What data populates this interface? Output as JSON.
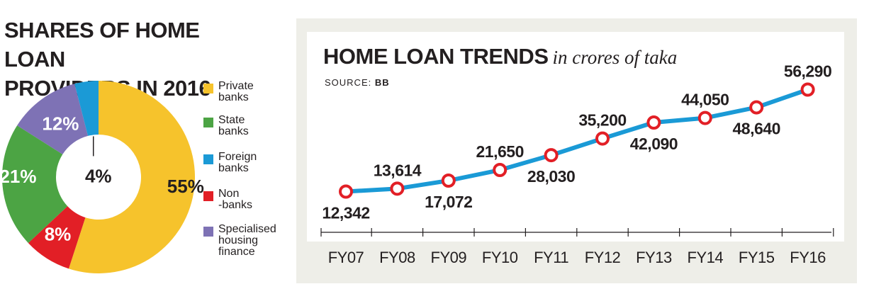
{
  "chart_data": [
    {
      "type": "pie",
      "title": "SHARES OF HOME LOAN\nPROVIDERS IN 2016",
      "labels": [
        "Private\nbanks",
        "State\nbanks",
        "Foreign\nbanks",
        "Non\n-banks",
        "Specialised\nhousing\nfinance"
      ],
      "segments": [
        {
          "name": "Private banks",
          "value": 55,
          "value_label": "55%",
          "color": "#f6c32c"
        },
        {
          "name": "Non-banks",
          "value": 8,
          "value_label": "8%",
          "color": "#e21f26"
        },
        {
          "name": "State banks",
          "value": 21,
          "value_label": "21%",
          "color": "#4ca444"
        },
        {
          "name": "Specialised housing finance",
          "value": 12,
          "value_label": "12%",
          "color": "#7e72b5"
        },
        {
          "name": "Foreign banks",
          "value": 4,
          "value_label": "4%",
          "color": "#1b9ad6"
        }
      ],
      "legend_colors": [
        "#f6c32c",
        "#4ca444",
        "#1b9ad6",
        "#e21f26",
        "#7e72b5"
      ],
      "legend_placement": "right"
    },
    {
      "type": "line",
      "title": "HOME LOAN TRENDS",
      "subtitle": "in crores of taka",
      "source_label": "SOURCE:",
      "source_value": "BB",
      "categories": [
        "FY07",
        "FY08",
        "FY09",
        "FY10",
        "FY11",
        "FY12",
        "FY13",
        "FY14",
        "FY15",
        "FY16"
      ],
      "series": [
        {
          "values": [
            12342,
            13614,
            17072,
            21650,
            28030,
            35200,
            42090,
            44050,
            48640,
            56290
          ],
          "labels": [
            "12,342",
            "13,614",
            "17,072",
            "21,650",
            "28,030",
            "35,200",
            "42,090",
            "44,050",
            "48,640",
            "56,290"
          ],
          "label_positions": [
            "below",
            "above",
            "below",
            "above",
            "below",
            "above",
            "below",
            "above",
            "below",
            "above"
          ],
          "color": "#1a9ad6",
          "marker_color": "#e21f26"
        }
      ],
      "ylim": [
        0,
        62000
      ],
      "grid": false
    }
  ]
}
